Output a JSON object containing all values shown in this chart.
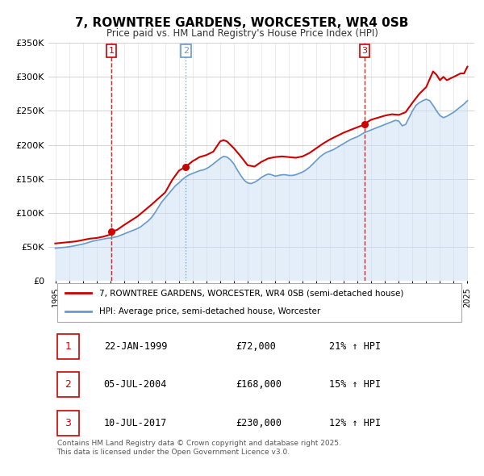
{
  "title": "7, ROWNTREE GARDENS, WORCESTER, WR4 0SB",
  "subtitle": "Price paid vs. HM Land Registry's House Price Index (HPI)",
  "legend_line1": "7, ROWNTREE GARDENS, WORCESTER, WR4 0SB (semi-detached house)",
  "legend_line2": "HPI: Average price, semi-detached house, Worcester",
  "footer": "Contains HM Land Registry data © Crown copyright and database right 2025.\nThis data is licensed under the Open Government Licence v3.0.",
  "ylim": [
    0,
    350000
  ],
  "yticks": [
    0,
    50000,
    100000,
    150000,
    200000,
    250000,
    300000,
    350000
  ],
  "ytick_labels": [
    "£0",
    "£50K",
    "£100K",
    "£150K",
    "£200K",
    "£250K",
    "£300K",
    "£350K"
  ],
  "red_color": "#cc0000",
  "blue_color": "#6699cc",
  "blue_fill": "#c8dff5",
  "sale_points": [
    {
      "label": "1",
      "date_num": 1999.07,
      "value": 72000,
      "vline_color": "#cc0000",
      "vline_ls": "--"
    },
    {
      "label": "2",
      "date_num": 2004.51,
      "value": 168000,
      "vline_color": "#6699cc",
      "vline_ls": ":"
    },
    {
      "label": "3",
      "date_num": 2017.52,
      "value": 230000,
      "vline_color": "#cc0000",
      "vline_ls": "--"
    }
  ],
  "table_rows": [
    {
      "num": "1",
      "date": "22-JAN-1999",
      "price": "£72,000",
      "hpi": "21% ↑ HPI"
    },
    {
      "num": "2",
      "date": "05-JUL-2004",
      "price": "£168,000",
      "hpi": "15% ↑ HPI"
    },
    {
      "num": "3",
      "date": "10-JUL-2017",
      "price": "£230,000",
      "hpi": "12% ↑ HPI"
    }
  ],
  "hpi_series": {
    "dates": [
      1995.0,
      1995.25,
      1995.5,
      1995.75,
      1996.0,
      1996.25,
      1996.5,
      1996.75,
      1997.0,
      1997.25,
      1997.5,
      1997.75,
      1998.0,
      1998.25,
      1998.5,
      1998.75,
      1999.0,
      1999.25,
      1999.5,
      1999.75,
      2000.0,
      2000.25,
      2000.5,
      2000.75,
      2001.0,
      2001.25,
      2001.5,
      2001.75,
      2002.0,
      2002.25,
      2002.5,
      2002.75,
      2003.0,
      2003.25,
      2003.5,
      2003.75,
      2004.0,
      2004.25,
      2004.5,
      2004.75,
      2005.0,
      2005.25,
      2005.5,
      2005.75,
      2006.0,
      2006.25,
      2006.5,
      2006.75,
      2007.0,
      2007.25,
      2007.5,
      2007.75,
      2008.0,
      2008.25,
      2008.5,
      2008.75,
      2009.0,
      2009.25,
      2009.5,
      2009.75,
      2010.0,
      2010.25,
      2010.5,
      2010.75,
      2011.0,
      2011.25,
      2011.5,
      2011.75,
      2012.0,
      2012.25,
      2012.5,
      2012.75,
      2013.0,
      2013.25,
      2013.5,
      2013.75,
      2014.0,
      2014.25,
      2014.5,
      2014.75,
      2015.0,
      2015.25,
      2015.5,
      2015.75,
      2016.0,
      2016.25,
      2016.5,
      2016.75,
      2017.0,
      2017.25,
      2017.5,
      2017.75,
      2018.0,
      2018.25,
      2018.5,
      2018.75,
      2019.0,
      2019.25,
      2019.5,
      2019.75,
      2020.0,
      2020.25,
      2020.5,
      2020.75,
      2021.0,
      2021.25,
      2021.5,
      2021.75,
      2022.0,
      2022.25,
      2022.5,
      2022.75,
      2023.0,
      2023.25,
      2023.5,
      2023.75,
      2024.0,
      2024.25,
      2024.5,
      2024.75,
      2025.0
    ],
    "values": [
      48000,
      48500,
      49000,
      49500,
      50000,
      51000,
      52000,
      53000,
      54000,
      55500,
      57000,
      58500,
      59500,
      60500,
      61500,
      62500,
      63000,
      64000,
      65000,
      67000,
      69000,
      71000,
      73000,
      75000,
      77000,
      80000,
      84000,
      88000,
      93000,
      100000,
      108000,
      116000,
      122000,
      128000,
      134000,
      140000,
      144000,
      149000,
      153000,
      156000,
      158000,
      160000,
      162000,
      163000,
      165000,
      168000,
      172000,
      176000,
      180000,
      183000,
      182000,
      178000,
      172000,
      163000,
      155000,
      148000,
      144000,
      143000,
      145000,
      148000,
      152000,
      155000,
      157000,
      156000,
      154000,
      155000,
      156000,
      156000,
      155000,
      155000,
      156000,
      158000,
      160000,
      163000,
      167000,
      172000,
      177000,
      182000,
      186000,
      189000,
      191000,
      193000,
      196000,
      199000,
      202000,
      205000,
      208000,
      210000,
      212000,
      215000,
      218000,
      220000,
      222000,
      224000,
      226000,
      228000,
      230000,
      232000,
      234000,
      236000,
      235000,
      228000,
      230000,
      240000,
      250000,
      258000,
      262000,
      265000,
      267000,
      265000,
      258000,
      250000,
      243000,
      240000,
      242000,
      245000,
      248000,
      252000,
      256000,
      260000,
      265000
    ]
  },
  "price_series": {
    "dates": [
      1995.0,
      1995.5,
      1996.0,
      1996.5,
      1997.0,
      1997.5,
      1998.0,
      1998.5,
      1999.0,
      1999.07,
      1999.5,
      2000.0,
      2001.0,
      2002.0,
      2003.0,
      2003.5,
      2004.0,
      2004.51,
      2004.75,
      2005.0,
      2005.5,
      2006.0,
      2006.5,
      2007.0,
      2007.25,
      2007.5,
      2007.75,
      2008.0,
      2008.5,
      2009.0,
      2009.5,
      2010.0,
      2010.5,
      2011.0,
      2011.5,
      2012.0,
      2012.5,
      2013.0,
      2013.5,
      2014.0,
      2014.5,
      2015.0,
      2015.5,
      2016.0,
      2016.5,
      2017.0,
      2017.52,
      2017.75,
      2018.0,
      2018.5,
      2019.0,
      2019.5,
      2020.0,
      2020.5,
      2021.0,
      2021.5,
      2022.0,
      2022.5,
      2022.75,
      2023.0,
      2023.25,
      2023.5,
      2024.0,
      2024.5,
      2024.75,
      2025.0
    ],
    "values": [
      55000,
      56000,
      57000,
      58000,
      60000,
      62000,
      63000,
      65000,
      68000,
      72000,
      75000,
      82000,
      95000,
      112000,
      130000,
      148000,
      162000,
      168000,
      172000,
      176000,
      182000,
      185000,
      190000,
      205000,
      207000,
      205000,
      200000,
      195000,
      183000,
      170000,
      168000,
      175000,
      180000,
      182000,
      183000,
      182000,
      181000,
      183000,
      188000,
      195000,
      202000,
      208000,
      213000,
      218000,
      222000,
      226000,
      230000,
      234000,
      237000,
      240000,
      243000,
      245000,
      244000,
      248000,
      262000,
      275000,
      285000,
      308000,
      303000,
      295000,
      300000,
      295000,
      300000,
      305000,
      305000,
      315000
    ]
  }
}
